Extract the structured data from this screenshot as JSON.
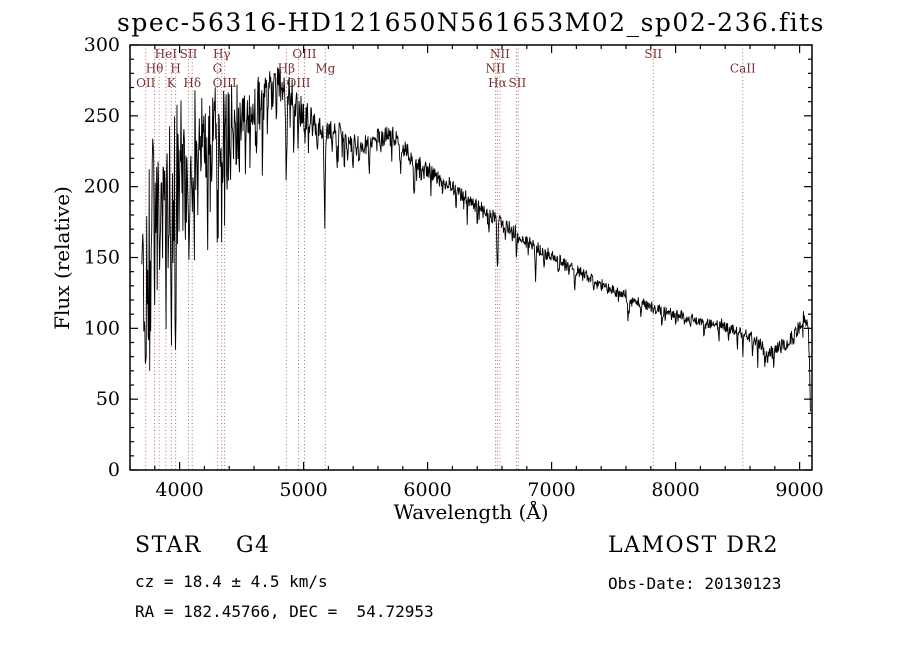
{
  "chart_data": {
    "type": "line",
    "title": "spec-56316-HD121650N561653M02_sp02-236.fits",
    "xlabel": "Wavelength (Å)",
    "ylabel": "Flux (relative)",
    "xlim": [
      3600,
      9100
    ],
    "ylim": [
      0,
      300
    ],
    "x_ticks": [
      4000,
      5000,
      6000,
      7000,
      8000,
      9000
    ],
    "y_ticks": [
      0,
      50,
      100,
      150,
      200,
      250,
      300
    ],
    "grid": false,
    "legend": "none",
    "line_color": "#000000",
    "line_markers": {
      "color": "#b87070",
      "label_color": "#7a3030",
      "lines": [
        3727,
        3798,
        3835,
        3889,
        3933,
        3968,
        4072,
        4102,
        4305,
        4340,
        4363,
        4861,
        4959,
        5007,
        5175,
        6548,
        6563,
        6583,
        6716,
        6731,
        7820,
        8542
      ],
      "labels": [
        {
          "text": "HeI",
          "wavelength": 3889,
          "row": 1
        },
        {
          "text": "SII",
          "wavelength": 4072,
          "row": 1
        },
        {
          "text": "Hγ",
          "wavelength": 4340,
          "row": 1
        },
        {
          "text": "OIII",
          "wavelength": 5007,
          "row": 1
        },
        {
          "text": "NII",
          "wavelength": 6583,
          "row": 1
        },
        {
          "text": "SII",
          "wavelength": 7820,
          "row": 1
        },
        {
          "text": "Hθ",
          "wavelength": 3798,
          "row": 2
        },
        {
          "text": "H",
          "wavelength": 3968,
          "row": 2
        },
        {
          "text": "G",
          "wavelength": 4305,
          "row": 2
        },
        {
          "text": "Hβ",
          "wavelength": 4861,
          "row": 2
        },
        {
          "text": "Mg",
          "wavelength": 5175,
          "row": 2
        },
        {
          "text": "NII",
          "wavelength": 6548,
          "row": 2
        },
        {
          "text": "CaII",
          "wavelength": 8542,
          "row": 2
        },
        {
          "text": "OII",
          "wavelength": 3727,
          "row": 3
        },
        {
          "text": "K",
          "wavelength": 3933,
          "row": 3
        },
        {
          "text": "Hδ",
          "wavelength": 4102,
          "row": 3
        },
        {
          "text": "OIII",
          "wavelength": 4363,
          "row": 3
        },
        {
          "text": "OIII",
          "wavelength": 4959,
          "row": 3
        },
        {
          "text": "Hα",
          "wavelength": 6563,
          "row": 3
        },
        {
          "text": "SII",
          "wavelength": 6724,
          "row": 3
        }
      ]
    },
    "spectrum": {
      "seed": 56316,
      "step": 4,
      "range": [
        3695,
        9090
      ],
      "spike_probability": 0.2,
      "up_spike_probability": 0.08,
      "continuum": [
        [
          3695,
          120
        ],
        [
          3720,
          150
        ],
        [
          3760,
          185
        ],
        [
          3800,
          205
        ],
        [
          3850,
          195
        ],
        [
          3900,
          215
        ],
        [
          3950,
          220
        ],
        [
          4000,
          232
        ],
        [
          4050,
          230
        ],
        [
          4100,
          236
        ],
        [
          4150,
          240
        ],
        [
          4200,
          236
        ],
        [
          4250,
          240
        ],
        [
          4300,
          242
        ],
        [
          4350,
          245
        ],
        [
          4400,
          250
        ],
        [
          4450,
          252
        ],
        [
          4500,
          252
        ],
        [
          4550,
          255
        ],
        [
          4600,
          257
        ],
        [
          4650,
          260
        ],
        [
          4700,
          265
        ],
        [
          4750,
          270
        ],
        [
          4800,
          272
        ],
        [
          4850,
          268
        ],
        [
          4880,
          272
        ],
        [
          4920,
          262
        ],
        [
          4960,
          255
        ],
        [
          5000,
          252
        ],
        [
          5050,
          248
        ],
        [
          5100,
          246
        ],
        [
          5150,
          243
        ],
        [
          5200,
          240
        ],
        [
          5300,
          236
        ],
        [
          5400,
          230
        ],
        [
          5500,
          229
        ],
        [
          5600,
          234
        ],
        [
          5700,
          238
        ],
        [
          5800,
          228
        ],
        [
          5900,
          218
        ],
        [
          6000,
          212
        ],
        [
          6100,
          207
        ],
        [
          6200,
          200
        ],
        [
          6300,
          193
        ],
        [
          6400,
          187
        ],
        [
          6500,
          180
        ],
        [
          6600,
          175
        ],
        [
          6700,
          168
        ],
        [
          6800,
          162
        ],
        [
          6900,
          156
        ],
        [
          7000,
          151
        ],
        [
          7100,
          146
        ],
        [
          7200,
          141
        ],
        [
          7300,
          136
        ],
        [
          7400,
          131
        ],
        [
          7500,
          127
        ],
        [
          7600,
          123
        ],
        [
          7700,
          119
        ],
        [
          7800,
          115
        ],
        [
          7900,
          112
        ],
        [
          8000,
          110
        ],
        [
          8100,
          107
        ],
        [
          8200,
          105
        ],
        [
          8300,
          103
        ],
        [
          8400,
          101
        ],
        [
          8500,
          98
        ],
        [
          8600,
          94
        ],
        [
          8700,
          88
        ],
        [
          8750,
          82
        ],
        [
          8800,
          85
        ],
        [
          8900,
          90
        ],
        [
          8950,
          96
        ],
        [
          9000,
          100
        ],
        [
          9040,
          106
        ],
        [
          9060,
          108
        ],
        [
          9075,
          95
        ],
        [
          9085,
          55
        ],
        [
          9090,
          32
        ]
      ],
      "noise_amplitude": [
        [
          3695,
          50
        ],
        [
          3800,
          45
        ],
        [
          3900,
          42
        ],
        [
          4000,
          38
        ],
        [
          4100,
          36
        ],
        [
          4200,
          33
        ],
        [
          4300,
          30
        ],
        [
          4400,
          26
        ],
        [
          4500,
          22
        ],
        [
          4600,
          20
        ],
        [
          4700,
          18
        ],
        [
          4800,
          15
        ],
        [
          4900,
          13
        ],
        [
          5000,
          11
        ],
        [
          5200,
          9
        ],
        [
          5400,
          8
        ],
        [
          5700,
          7
        ],
        [
          6000,
          6
        ],
        [
          6500,
          5
        ],
        [
          7000,
          4.5
        ],
        [
          7500,
          4
        ],
        [
          8000,
          3.5
        ],
        [
          8500,
          4
        ],
        [
          8800,
          4.5
        ],
        [
          9090,
          6
        ]
      ],
      "down_spike_amplitude": [
        [
          3695,
          95
        ],
        [
          3800,
          90
        ],
        [
          3900,
          85
        ],
        [
          4000,
          75
        ],
        [
          4100,
          68
        ],
        [
          4200,
          60
        ],
        [
          4300,
          52
        ],
        [
          4400,
          40
        ],
        [
          4500,
          30
        ],
        [
          4600,
          25
        ],
        [
          4700,
          20
        ],
        [
          4800,
          16
        ],
        [
          4900,
          13
        ],
        [
          5000,
          11
        ],
        [
          5300,
          9
        ],
        [
          5700,
          8
        ],
        [
          6000,
          7
        ],
        [
          6500,
          6
        ],
        [
          7000,
          5
        ],
        [
          8000,
          4
        ],
        [
          8700,
          6
        ],
        [
          9090,
          6
        ]
      ],
      "absorption_lines": [
        [
          3727,
          70,
          4
        ],
        [
          3750,
          55,
          3
        ],
        [
          3770,
          60,
          3
        ],
        [
          3798,
          85,
          4
        ],
        [
          3820,
          50,
          3
        ],
        [
          3835,
          90,
          4
        ],
        [
          3860,
          55,
          3
        ],
        [
          3889,
          95,
          4
        ],
        [
          3910,
          50,
          3
        ],
        [
          3933,
          125,
          4
        ],
        [
          3950,
          60,
          3
        ],
        [
          3968,
          115,
          4
        ],
        [
          4000,
          55,
          3
        ],
        [
          4026,
          55,
          3
        ],
        [
          4045,
          48,
          3
        ],
        [
          4072,
          60,
          3
        ],
        [
          4102,
          75,
          4
        ],
        [
          4132,
          50,
          3
        ],
        [
          4144,
          55,
          3
        ],
        [
          4172,
          45,
          3
        ],
        [
          4200,
          45,
          3
        ],
        [
          4226,
          60,
          3
        ],
        [
          4250,
          45,
          3
        ],
        [
          4271,
          50,
          3
        ],
        [
          4305,
          55,
          5
        ],
        [
          4325,
          45,
          3
        ],
        [
          4340,
          80,
          4
        ],
        [
          4363,
          45,
          3
        ],
        [
          4383,
          60,
          3
        ],
        [
          4405,
          45,
          3
        ],
        [
          4430,
          35,
          3
        ],
        [
          4455,
          40,
          3
        ],
        [
          4481,
          35,
          3
        ],
        [
          4531,
          35,
          3
        ],
        [
          4571,
          30,
          3
        ],
        [
          4620,
          30,
          3
        ],
        [
          4668,
          35,
          3
        ],
        [
          4710,
          25,
          3
        ],
        [
          4780,
          25,
          3
        ],
        [
          4861,
          68,
          4
        ],
        [
          4891,
          25,
          3
        ],
        [
          4921,
          30,
          3
        ],
        [
          4957,
          25,
          3
        ],
        [
          5007,
          22,
          3
        ],
        [
          5041,
          20,
          3
        ],
        [
          5110,
          25,
          3
        ],
        [
          5172,
          55,
          6
        ],
        [
          5230,
          20,
          3
        ],
        [
          5270,
          30,
          4
        ],
        [
          5328,
          22,
          3
        ],
        [
          5400,
          18,
          3
        ],
        [
          5446,
          18,
          3
        ],
        [
          5530,
          18,
          3
        ],
        [
          5624,
          15,
          3
        ],
        [
          5711,
          14,
          3
        ],
        [
          5782,
          14,
          3
        ],
        [
          5890,
          26,
          5
        ],
        [
          5950,
          12,
          3
        ],
        [
          6024,
          12,
          3
        ],
        [
          6122,
          15,
          3
        ],
        [
          6230,
          12,
          3
        ],
        [
          6318,
          12,
          3
        ],
        [
          6400,
          12,
          3
        ],
        [
          6495,
          12,
          3
        ],
        [
          6563,
          40,
          4
        ],
        [
          6625,
          10,
          3
        ],
        [
          6717,
          12,
          3
        ],
        [
          6870,
          18,
          5
        ],
        [
          6940,
          10,
          3
        ],
        [
          7054,
          10,
          3
        ],
        [
          7190,
          12,
          5
        ],
        [
          7340,
          8,
          3
        ],
        [
          7450,
          8,
          3
        ],
        [
          7620,
          18,
          7
        ],
        [
          7720,
          8,
          3
        ],
        [
          7890,
          8,
          3
        ],
        [
          8000,
          7,
          3
        ],
        [
          8120,
          8,
          3
        ],
        [
          8230,
          10,
          4
        ],
        [
          8350,
          8,
          3
        ],
        [
          8430,
          8,
          3
        ],
        [
          8498,
          14,
          3
        ],
        [
          8542,
          18,
          3
        ],
        [
          8620,
          10,
          3
        ],
        [
          8662,
          16,
          3
        ],
        [
          8720,
          12,
          3
        ],
        [
          8790,
          10,
          3
        ],
        [
          8880,
          8,
          3
        ],
        [
          8950,
          8,
          3
        ],
        [
          9020,
          8,
          3
        ]
      ]
    }
  },
  "annotations": {
    "class_line": "STAR    G4",
    "survey": "LAMOST DR2",
    "cz_line": "cz = 18.4 ± 4.5 km/s",
    "obs_date": "Obs-Date: 20130123",
    "ra_line": "RA = 182.45766, DEC =  54.72953"
  }
}
